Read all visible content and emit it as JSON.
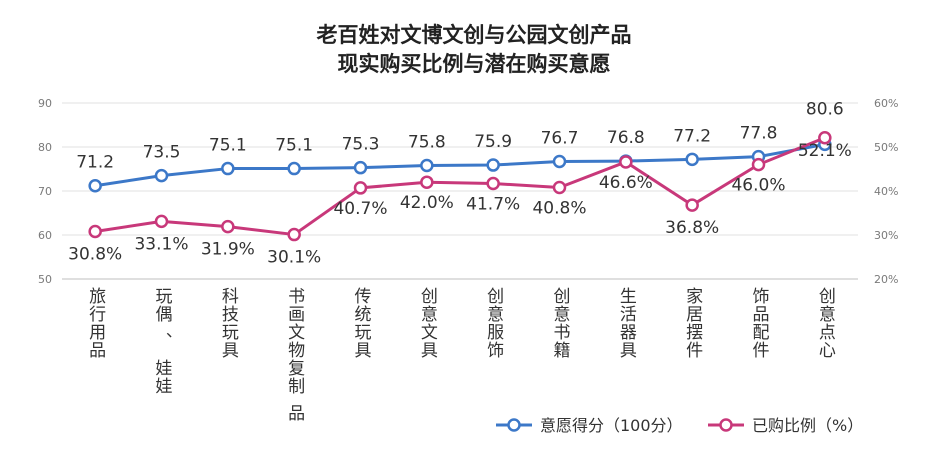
{
  "chart_data": {
    "type": "line",
    "title": [
      "老百姓对文博文创与公园文创产品",
      "现实购买比例与潜在购买意愿"
    ],
    "categories": [
      [
        "旅行",
        "用品"
      ],
      [
        "玩偶",
        "、",
        "娃娃"
      ],
      [
        "科技",
        "玩具"
      ],
      [
        "书画",
        "文物",
        "复制",
        "品"
      ],
      [
        "传统",
        "玩具"
      ],
      [
        "创意",
        "文具"
      ],
      [
        "创意",
        "服饰"
      ],
      [
        "创意",
        "书籍"
      ],
      [
        "生活",
        "器具"
      ],
      [
        "家居",
        "摆件"
      ],
      [
        "饰品",
        "配件"
      ],
      [
        "创意",
        "点心"
      ]
    ],
    "y_left": {
      "ticks": [
        "50",
        "60",
        "70",
        "80",
        "90"
      ],
      "ylim": [
        50,
        90
      ]
    },
    "y_right": {
      "ticks": [
        "20%",
        "30%",
        "40%",
        "50%",
        "60%"
      ],
      "ylim": [
        20,
        60
      ]
    },
    "grid": true,
    "legend_position": "bottom-right",
    "series": [
      {
        "name": "意愿得分（100分）",
        "axis": "left",
        "color": "#3c78c8",
        "values": [
          71.2,
          73.5,
          75.1,
          75.1,
          75.3,
          75.8,
          75.9,
          76.7,
          76.8,
          77.2,
          77.8,
          80.6
        ],
        "labels": [
          "71.2",
          "73.5",
          "75.1",
          "75.1",
          "75.3",
          "75.8",
          "75.9",
          "76.7",
          "76.8",
          "77.2",
          "77.8",
          "80.6"
        ]
      },
      {
        "name": "已购比例（%）",
        "axis": "right",
        "color": "#c8387a",
        "values": [
          30.8,
          33.1,
          31.9,
          30.1,
          40.7,
          42.0,
          41.7,
          40.8,
          46.6,
          36.8,
          46.0,
          52.1
        ],
        "labels": [
          "30.8%",
          "33.1%",
          "31.9%",
          "30.1%",
          "40.7%",
          "42.0%",
          "41.7%",
          "40.8%",
          "46.6%",
          "36.8%",
          "46.0%",
          "52.1%"
        ]
      }
    ]
  }
}
